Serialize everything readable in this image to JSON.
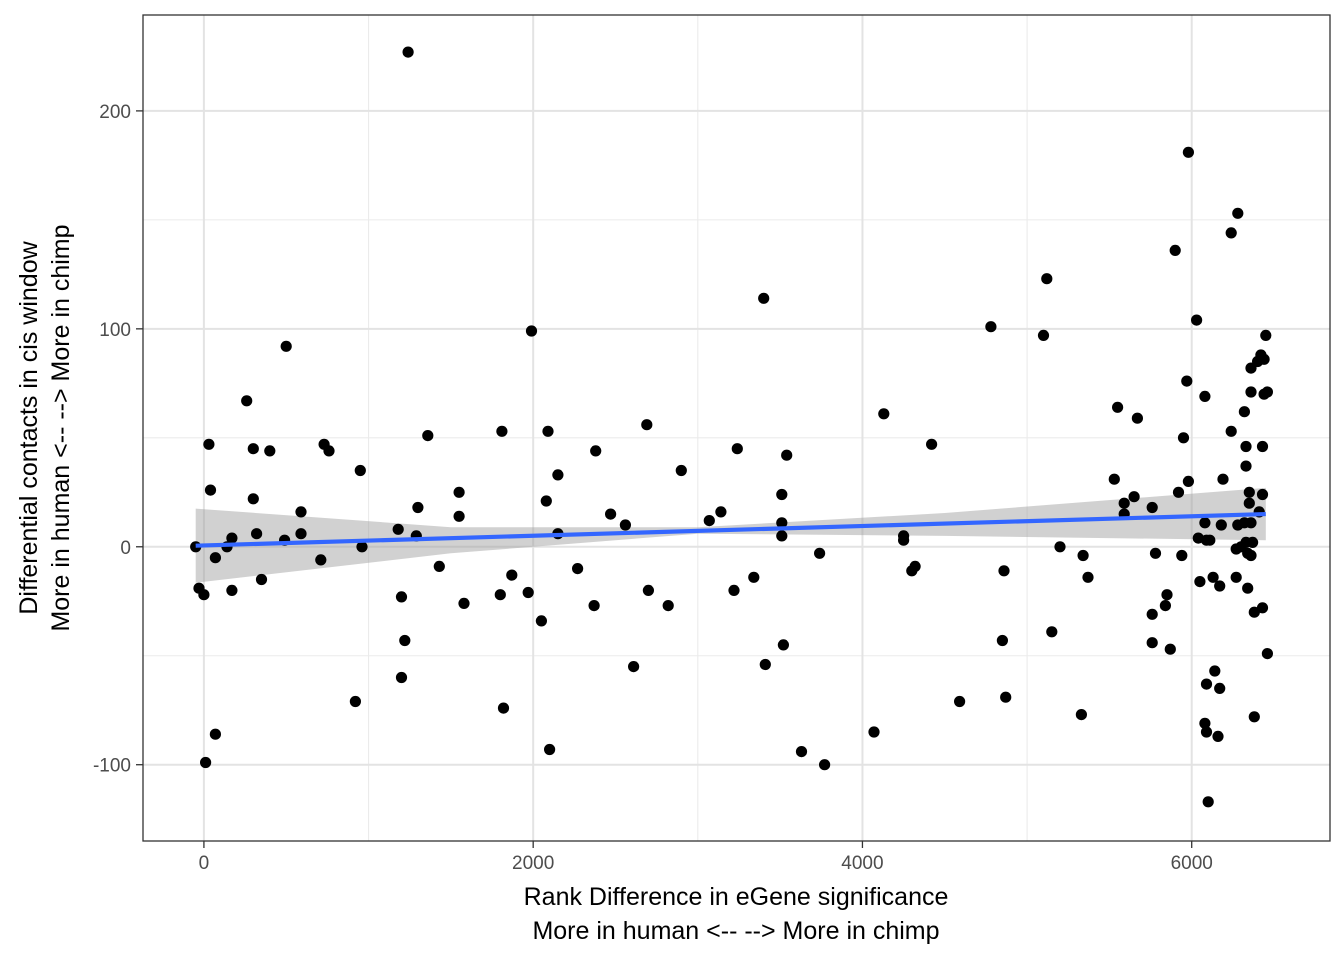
{
  "chart_data": {
    "type": "scatter",
    "xlabel_lines": [
      "Rank Difference in eGene significance",
      "More in human <--  --> More in chimp"
    ],
    "ylabel_lines": [
      "Differential contacts in cis window",
      "More in human <--  --> More in chimp"
    ],
    "xlim": [
      -370,
      6840
    ],
    "ylim": [
      -135,
      244
    ],
    "x_major_ticks": [
      0,
      2000,
      4000,
      6000
    ],
    "x_tick_labels": [
      "0",
      "2000",
      "4000",
      "6000"
    ],
    "x_minor_ticks": [
      1000,
      3000,
      5000
    ],
    "y_major_ticks": [
      -100,
      0,
      100,
      200
    ],
    "y_tick_labels": [
      "-100",
      "0",
      "100",
      "200"
    ],
    "y_minor_ticks": [
      -50,
      50,
      150
    ],
    "grid": true,
    "theme": "bw",
    "trend": {
      "method": "lm",
      "color": "#3366FF",
      "ribbon_color": "#999999",
      "line": [
        [
          -50,
          0.5
        ],
        [
          6450,
          15
        ]
      ],
      "ci_upper": [
        [
          -50,
          17.5
        ],
        [
          1500,
          9
        ],
        [
          3000,
          9
        ],
        [
          4500,
          15.5
        ],
        [
          6450,
          27
        ]
      ],
      "ci_lower": [
        [
          -50,
          -16.5
        ],
        [
          1500,
          -3
        ],
        [
          3000,
          6
        ],
        [
          4500,
          5
        ],
        [
          6450,
          3
        ]
      ]
    },
    "points": [
      [
        1240,
        227
      ],
      [
        5980,
        181
      ],
      [
        6280,
        153
      ],
      [
        6240,
        144
      ],
      [
        5900,
        136
      ],
      [
        5120,
        123
      ],
      [
        3400,
        114
      ],
      [
        6030,
        104
      ],
      [
        4780,
        101
      ],
      [
        1990,
        99
      ],
      [
        5100,
        97
      ],
      [
        6450,
        97
      ],
      [
        500,
        92
      ],
      [
        6400,
        85
      ],
      [
        6440,
        86
      ],
      [
        6420,
        88
      ],
      [
        6360,
        82
      ],
      [
        5970,
        76
      ],
      [
        6360,
        71
      ],
      [
        6440,
        70
      ],
      [
        6460,
        71
      ],
      [
        260,
        67
      ],
      [
        6080,
        69
      ],
      [
        5550,
        64
      ],
      [
        6320,
        62
      ],
      [
        4130,
        61
      ],
      [
        5670,
        59
      ],
      [
        2690,
        56
      ],
      [
        2090,
        53
      ],
      [
        6240,
        53
      ],
      [
        1810,
        53
      ],
      [
        1360,
        51
      ],
      [
        5950,
        50
      ],
      [
        30,
        47
      ],
      [
        730,
        47
      ],
      [
        4420,
        47
      ],
      [
        300,
        45
      ],
      [
        3240,
        45
      ],
      [
        6330,
        46
      ],
      [
        6430,
        46
      ],
      [
        400,
        44
      ],
      [
        760,
        44
      ],
      [
        2380,
        44
      ],
      [
        3540,
        42
      ],
      [
        950,
        35
      ],
      [
        2900,
        35
      ],
      [
        2150,
        33
      ],
      [
        5530,
        31
      ],
      [
        6190,
        31
      ],
      [
        5980,
        30
      ],
      [
        6330,
        37
      ],
      [
        40,
        26
      ],
      [
        1550,
        25
      ],
      [
        3510,
        24
      ],
      [
        5650,
        23
      ],
      [
        5920,
        25
      ],
      [
        6350,
        25
      ],
      [
        6430,
        24
      ],
      [
        6350,
        20
      ],
      [
        300,
        22
      ],
      [
        2080,
        21
      ],
      [
        5590,
        20
      ],
      [
        5760,
        18
      ],
      [
        1300,
        18
      ],
      [
        3140,
        16
      ],
      [
        6410,
        16
      ],
      [
        590,
        16
      ],
      [
        1550,
        14
      ],
      [
        2470,
        15
      ],
      [
        5590,
        15
      ],
      [
        3070,
        12
      ],
      [
        3510,
        11
      ],
      [
        6080,
        11
      ],
      [
        6180,
        10
      ],
      [
        6280,
        10
      ],
      [
        6320,
        11
      ],
      [
        6360,
        11
      ],
      [
        2560,
        10
      ],
      [
        1180,
        8
      ],
      [
        320,
        6
      ],
      [
        590,
        6
      ],
      [
        1290,
        5
      ],
      [
        2150,
        6
      ],
      [
        3510,
        5
      ],
      [
        4250,
        5
      ],
      [
        4250,
        3
      ],
      [
        6040,
        4
      ],
      [
        6090,
        3
      ],
      [
        6110,
        3
      ],
      [
        490,
        3
      ],
      [
        170,
        4
      ],
      [
        140,
        0
      ],
      [
        -50,
        0
      ],
      [
        960,
        0
      ],
      [
        5200,
        0
      ],
      [
        6330,
        2
      ],
      [
        6370,
        2
      ],
      [
        6270,
        -1
      ],
      [
        6300,
        0
      ],
      [
        6340,
        -3
      ],
      [
        6360,
        -4
      ],
      [
        70,
        -5
      ],
      [
        710,
        -6
      ],
      [
        5340,
        -4
      ],
      [
        5780,
        -3
      ],
      [
        5940,
        -4
      ],
      [
        3740,
        -3
      ],
      [
        1430,
        -9
      ],
      [
        2270,
        -10
      ],
      [
        4320,
        -9
      ],
      [
        4300,
        -11
      ],
      [
        4860,
        -11
      ],
      [
        1870,
        -13
      ],
      [
        6130,
        -14
      ],
      [
        6270,
        -14
      ],
      [
        350,
        -15
      ],
      [
        3340,
        -14
      ],
      [
        5370,
        -14
      ],
      [
        6050,
        -16
      ],
      [
        6170,
        -18
      ],
      [
        6340,
        -19
      ],
      [
        -30,
        -19
      ],
      [
        0,
        -22
      ],
      [
        170,
        -20
      ],
      [
        1200,
        -23
      ],
      [
        1800,
        -22
      ],
      [
        1970,
        -21
      ],
      [
        2700,
        -20
      ],
      [
        3220,
        -20
      ],
      [
        5850,
        -22
      ],
      [
        1580,
        -26
      ],
      [
        2370,
        -27
      ],
      [
        2820,
        -27
      ],
      [
        5840,
        -27
      ],
      [
        6430,
        -28
      ],
      [
        6380,
        -30
      ],
      [
        5760,
        -31
      ],
      [
        2050,
        -34
      ],
      [
        5150,
        -39
      ],
      [
        1220,
        -43
      ],
      [
        4850,
        -43
      ],
      [
        5760,
        -44
      ],
      [
        3520,
        -45
      ],
      [
        5870,
        -47
      ],
      [
        6460,
        -49
      ],
      [
        3410,
        -54
      ],
      [
        2610,
        -55
      ],
      [
        6140,
        -57
      ],
      [
        1200,
        -60
      ],
      [
        6090,
        -63
      ],
      [
        6170,
        -65
      ],
      [
        4870,
        -69
      ],
      [
        920,
        -71
      ],
      [
        4590,
        -71
      ],
      [
        1820,
        -74
      ],
      [
        5330,
        -77
      ],
      [
        6380,
        -78
      ],
      [
        6080,
        -81
      ],
      [
        70,
        -86
      ],
      [
        4070,
        -85
      ],
      [
        6090,
        -85
      ],
      [
        6160,
        -87
      ],
      [
        2100,
        -93
      ],
      [
        3630,
        -94
      ],
      [
        10,
        -99
      ],
      [
        3770,
        -100
      ],
      [
        6100,
        -117
      ]
    ]
  }
}
